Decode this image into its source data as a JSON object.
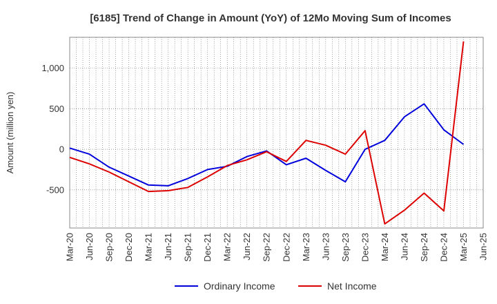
{
  "chart_data": {
    "type": "line",
    "title": "[6185]  Trend of Change in Amount (YoY) of 12Mo Moving Sum of Incomes",
    "xlabel": "",
    "ylabel": "Amount (million yen)",
    "categories": [
      "Mar-20",
      "Jun-20",
      "Sep-20",
      "Dec-20",
      "Mar-21",
      "Jun-21",
      "Sep-21",
      "Dec-21",
      "Mar-22",
      "Jun-22",
      "Sep-22",
      "Dec-22",
      "Mar-23",
      "Jun-23",
      "Sep-23",
      "Dec-23",
      "Mar-24",
      "Jun-24",
      "Sep-24",
      "Dec-24",
      "Mar-25",
      "Jun-25"
    ],
    "y_ticks": [
      {
        "value": -500,
        "label": "-500"
      },
      {
        "value": 0,
        "label": "0"
      },
      {
        "value": 500,
        "label": "500"
      },
      {
        "value": 1000,
        "label": "1,000"
      }
    ],
    "ylim": [
      -970,
      1380
    ],
    "grid": true,
    "legend_position": "bottom",
    "series": [
      {
        "name": "Ordinary Income",
        "color": "#0000dd",
        "values": [
          15,
          -60,
          -220,
          -330,
          -440,
          -450,
          -360,
          -250,
          -210,
          -90,
          -20,
          -190,
          -110,
          -260,
          -400,
          0,
          110,
          400,
          560,
          240,
          60,
          null
        ]
      },
      {
        "name": "Net Income",
        "color": "#dd0000",
        "values": [
          -100,
          -180,
          -280,
          -400,
          -520,
          -510,
          -470,
          -340,
          -200,
          -130,
          -30,
          -150,
          110,
          50,
          -60,
          230,
          -920,
          -750,
          -540,
          -760,
          1330,
          null
        ]
      }
    ]
  }
}
